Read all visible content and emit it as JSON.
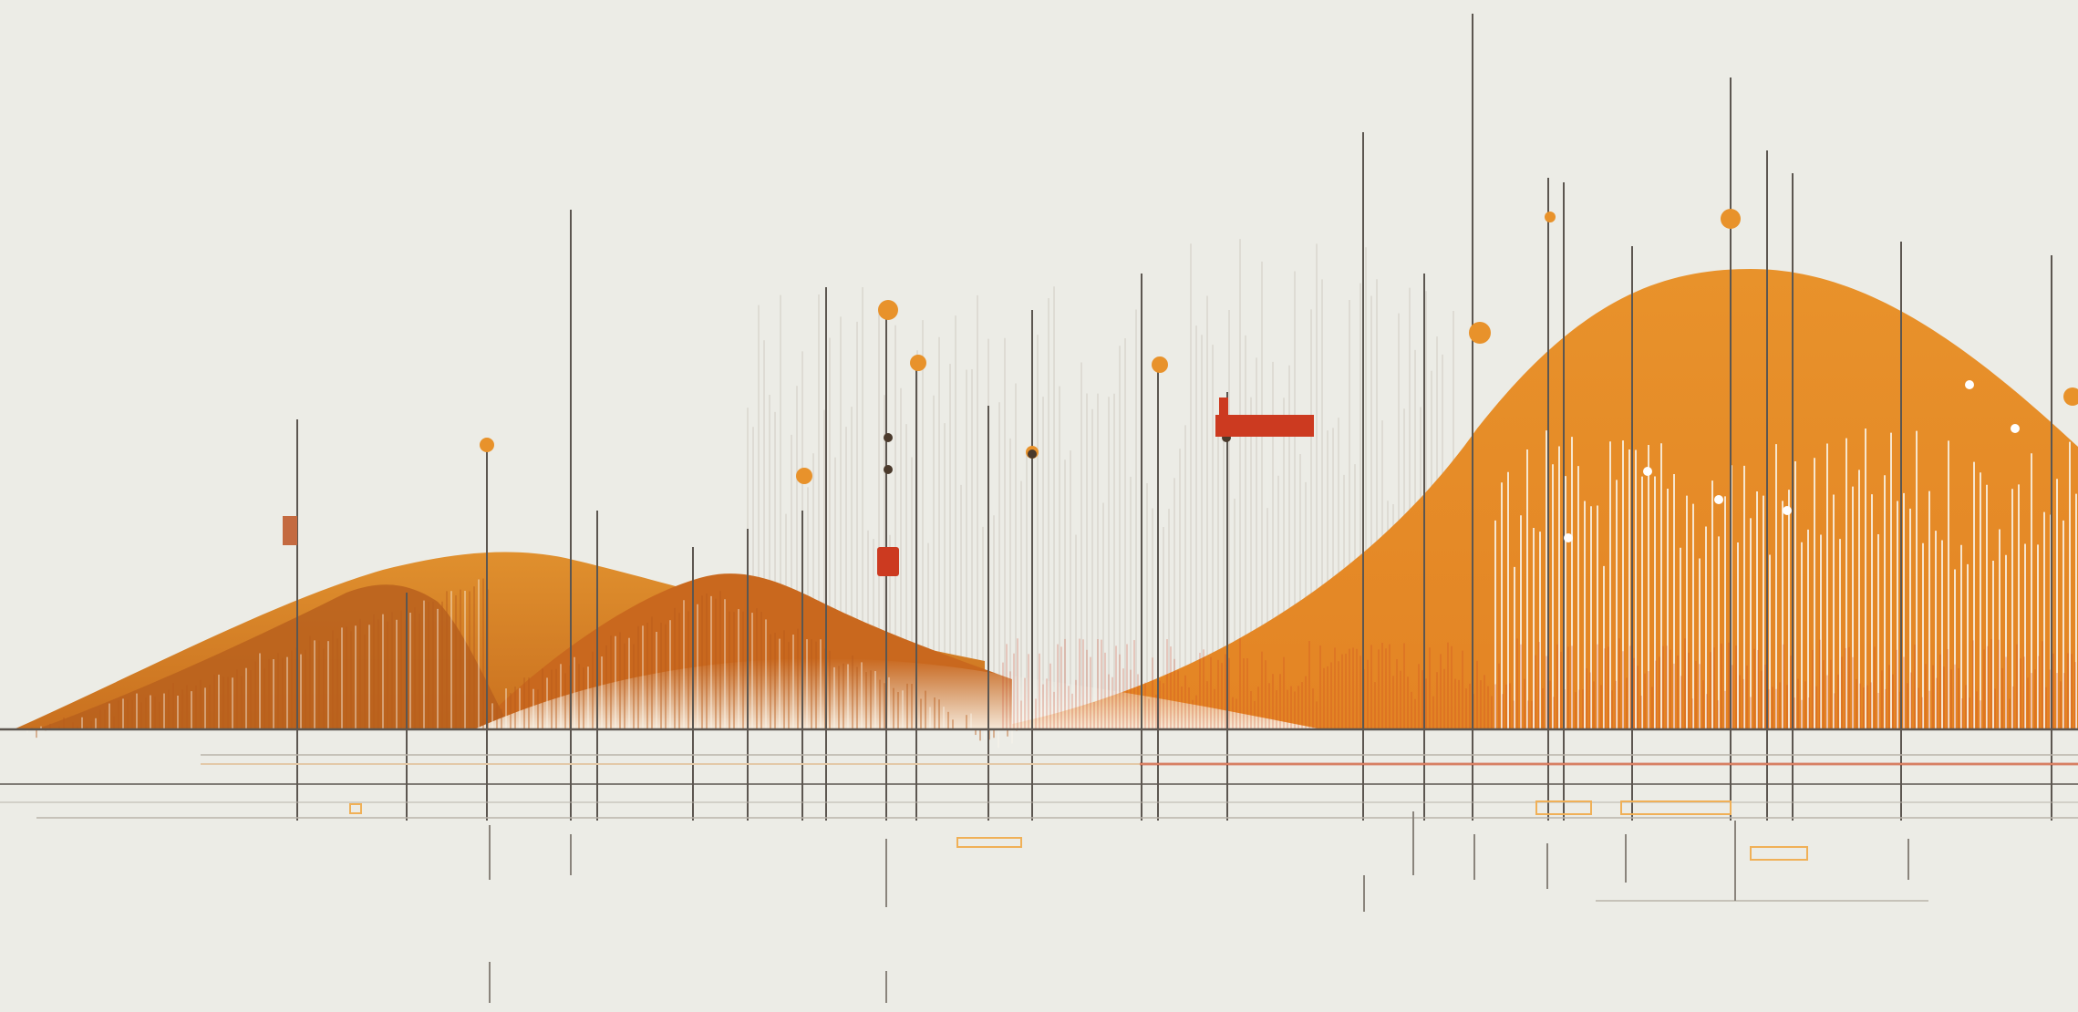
{
  "artwork": {
    "kind": "abstract-data-visualization-illustration",
    "colors": {
      "background": "#ecece6",
      "orange": "#e8922b",
      "orange_light": "#f0b057",
      "dark_orange": "#b85c1c",
      "red": "#cc3a20",
      "line": "#5c5650",
      "pale_line": "#d8d4cc",
      "cream": "#fbf6ec"
    },
    "texts": []
  }
}
